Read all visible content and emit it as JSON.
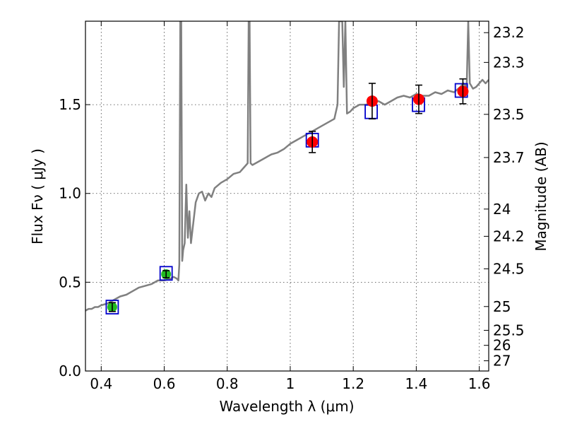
{
  "chart_data": {
    "type": "line",
    "xlabel": "Wavelength  λ (μm)",
    "ylabel": "Flux  Fν  ( μJy )",
    "y2label": "Magnitude (AB)",
    "xlim": [
      0.35,
      1.63
    ],
    "ylim": [
      0.0,
      1.97
    ],
    "grid": true,
    "x_ticks": [
      0.4,
      0.6,
      0.8,
      1.0,
      1.2,
      1.4,
      1.6
    ],
    "x_tick_labels": [
      "0.4",
      "0.6",
      "0.8",
      "1",
      "1.2",
      "1.4",
      "1.6"
    ],
    "y_ticks": [
      0.0,
      0.5,
      1.0,
      1.5
    ],
    "y_tick_labels": [
      "0.0",
      "0.5",
      "1.0",
      "1.5"
    ],
    "y2_tick_labels": [
      "23.2",
      "23.3",
      "23.5",
      "23.7",
      "24",
      "24.2",
      "24.5",
      "25",
      "25.5",
      "26",
      "27"
    ],
    "colors": {
      "spectrum": "#808080",
      "model_box": "#0000cc",
      "optical_point": "#22bb22",
      "nir_point": "#ff0000",
      "errorbar": "#000000"
    },
    "series": [
      {
        "kind": "model-spectrum",
        "x": [
          0.35,
          0.36,
          0.37,
          0.38,
          0.39,
          0.4,
          0.42,
          0.44,
          0.46,
          0.48,
          0.5,
          0.52,
          0.54,
          0.56,
          0.58,
          0.6,
          0.62,
          0.63,
          0.64,
          0.645,
          0.648,
          0.651,
          0.654,
          0.657,
          0.66,
          0.665,
          0.67,
          0.675,
          0.68,
          0.685,
          0.69,
          0.7,
          0.71,
          0.72,
          0.73,
          0.74,
          0.75,
          0.76,
          0.78,
          0.8,
          0.82,
          0.84,
          0.855,
          0.865,
          0.868,
          0.871,
          0.874,
          0.88,
          0.9,
          0.92,
          0.94,
          0.96,
          0.98,
          1.0,
          1.02,
          1.04,
          1.06,
          1.08,
          1.1,
          1.12,
          1.14,
          1.15,
          1.155,
          1.16,
          1.165,
          1.17,
          1.175,
          1.18,
          1.19,
          1.2,
          1.22,
          1.24,
          1.26,
          1.28,
          1.3,
          1.32,
          1.34,
          1.36,
          1.38,
          1.4,
          1.42,
          1.44,
          1.46,
          1.48,
          1.5,
          1.52,
          1.54,
          1.55,
          1.56,
          1.565,
          1.57,
          1.58,
          1.59,
          1.6,
          1.61,
          1.62,
          1.63
        ],
        "y": [
          0.34,
          0.35,
          0.35,
          0.36,
          0.36,
          0.37,
          0.38,
          0.4,
          0.42,
          0.43,
          0.45,
          0.47,
          0.48,
          0.49,
          0.51,
          0.51,
          0.52,
          0.53,
          0.52,
          0.51,
          0.6,
          1.97,
          1.97,
          0.62,
          0.68,
          0.72,
          1.05,
          0.75,
          0.9,
          0.72,
          0.8,
          0.95,
          1.0,
          1.01,
          0.96,
          1.0,
          0.98,
          1.03,
          1.06,
          1.08,
          1.11,
          1.12,
          1.15,
          1.17,
          1.97,
          1.97,
          1.17,
          1.16,
          1.18,
          1.2,
          1.22,
          1.23,
          1.25,
          1.28,
          1.3,
          1.32,
          1.34,
          1.36,
          1.38,
          1.4,
          1.42,
          1.5,
          1.97,
          1.97,
          1.97,
          1.6,
          1.97,
          1.45,
          1.46,
          1.48,
          1.5,
          1.5,
          1.51,
          1.52,
          1.5,
          1.52,
          1.54,
          1.55,
          1.54,
          1.56,
          1.55,
          1.55,
          1.57,
          1.56,
          1.58,
          1.57,
          1.6,
          1.62,
          1.6,
          1.97,
          1.62,
          1.59,
          1.6,
          1.62,
          1.64,
          1.62,
          1.64
        ]
      },
      {
        "kind": "model-photometry",
        "x": [
          0.435,
          0.606,
          1.07,
          1.257,
          1.407,
          1.543
        ],
        "y": [
          0.36,
          0.55,
          1.3,
          1.46,
          1.5,
          1.58
        ]
      },
      {
        "kind": "optical-photometry",
        "x": [
          0.435,
          0.606
        ],
        "y": [
          0.36,
          0.545
        ],
        "yerr": [
          0.025,
          0.02
        ]
      },
      {
        "kind": "nir-photometry",
        "x": [
          1.07,
          1.26,
          1.408,
          1.548
        ],
        "y": [
          1.29,
          1.52,
          1.53,
          1.575
        ],
        "yerr": [
          0.06,
          0.1,
          0.08,
          0.07
        ]
      }
    ]
  }
}
